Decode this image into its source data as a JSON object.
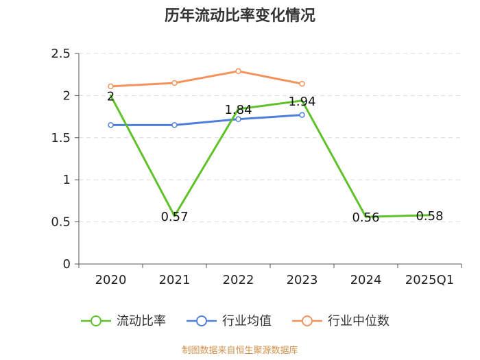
{
  "chart_data": {
    "type": "line",
    "title": "历年流动比率变化情况",
    "categories": [
      "2020",
      "2021",
      "2022",
      "2023",
      "2024",
      "2025Q1"
    ],
    "ylim": [
      0,
      2.5
    ],
    "yticks": [
      "0",
      "0.5",
      "1",
      "1.5",
      "2",
      "2.5"
    ],
    "grid": true,
    "legend_position": "bottom",
    "series": [
      {
        "name": "流动比率",
        "color": "#5fc228",
        "values": [
          2.0,
          0.57,
          1.84,
          1.94,
          0.56,
          0.58
        ],
        "labels": [
          "2",
          "0.57",
          "1.84",
          "1.94",
          "0.56",
          "0.58"
        ],
        "show_markers": false
      },
      {
        "name": "行业均值",
        "color": "#4f7fdc",
        "values": [
          1.65,
          1.65,
          1.72,
          1.77,
          null,
          null
        ],
        "show_markers": true
      },
      {
        "name": "行业中位数",
        "color": "#f5925a",
        "values": [
          2.11,
          2.15,
          2.29,
          2.14,
          null,
          null
        ],
        "show_markers": true
      }
    ]
  },
  "source": "制图数据来自恒生聚源数据库"
}
